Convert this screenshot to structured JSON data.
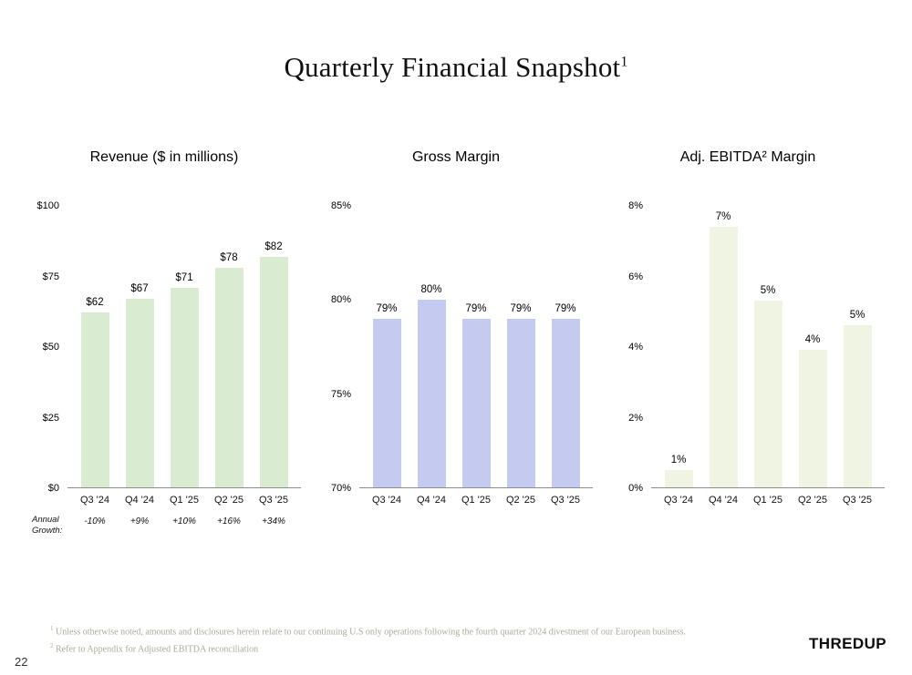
{
  "slide": {
    "title": "Quarterly Financial Snapshot",
    "title_superscript": "1",
    "annual_growth_label": "Annual\nGrowth:",
    "page_number": "22",
    "logo": "THREDUP",
    "footnotes": [
      {
        "sup": "1",
        "text": "Unless otherwise noted, amounts and disclosures herein relate to our continuing U.S only operations following the fourth quarter 2024 divestment of our European business."
      },
      {
        "sup": "2",
        "text": "Refer to Appendix for Adjusted EBITDA reconciliation"
      }
    ]
  },
  "chart_data": [
    {
      "type": "bar",
      "title": "Revenue ($ in millions)",
      "categories": [
        "Q3 '24",
        "Q4 '24",
        "Q1 '25",
        "Q2 '25",
        "Q3 '25"
      ],
      "values": [
        62,
        67,
        71,
        78,
        82
      ],
      "labels": [
        "$62",
        "$67",
        "$71",
        "$78",
        "$82"
      ],
      "ylim": [
        0,
        100
      ],
      "y_ticks": [
        {
          "value": 0,
          "label": "$0"
        },
        {
          "value": 25,
          "label": "$25"
        },
        {
          "value": 50,
          "label": "$50"
        },
        {
          "value": 75,
          "label": "$75"
        },
        {
          "value": 100,
          "label": "$100"
        }
      ],
      "bar_color": "#d9ecd2",
      "grid": false,
      "legend": false,
      "annual_growth": [
        "-10%",
        "+9%",
        "+10%",
        "+16%",
        "+34%"
      ]
    },
    {
      "type": "bar",
      "title": "Gross Margin",
      "categories": [
        "Q3 '24",
        "Q4 '24",
        "Q1 '25",
        "Q2 '25",
        "Q3 '25"
      ],
      "values": [
        79,
        80,
        79,
        79,
        79
      ],
      "labels": [
        "79%",
        "80%",
        "79%",
        "79%",
        "79%"
      ],
      "ylim": [
        70,
        85
      ],
      "y_ticks": [
        {
          "value": 70,
          "label": "70%"
        },
        {
          "value": 75,
          "label": "75%"
        },
        {
          "value": 80,
          "label": "80%"
        },
        {
          "value": 85,
          "label": "85%"
        }
      ],
      "bar_color": "#c5cbf0",
      "grid": false,
      "legend": false
    },
    {
      "type": "bar",
      "title": "Adj. EBITDA² Margin",
      "categories": [
        "Q3 '24",
        "Q4 '24",
        "Q1 '25",
        "Q2 '25",
        "Q3 '25"
      ],
      "values": [
        1,
        7,
        5,
        4,
        5
      ],
      "plot_values": [
        0.5,
        7.4,
        5.3,
        3.9,
        4.6
      ],
      "labels": [
        "1%",
        "7%",
        "5%",
        "4%",
        "5%"
      ],
      "ylim": [
        0,
        8
      ],
      "y_ticks": [
        {
          "value": 0,
          "label": "0%"
        },
        {
          "value": 2,
          "label": "2%"
        },
        {
          "value": 4,
          "label": "4%"
        },
        {
          "value": 6,
          "label": "6%"
        },
        {
          "value": 8,
          "label": "8%"
        }
      ],
      "bar_color": "#eff5e2",
      "grid": false,
      "legend": false
    }
  ]
}
